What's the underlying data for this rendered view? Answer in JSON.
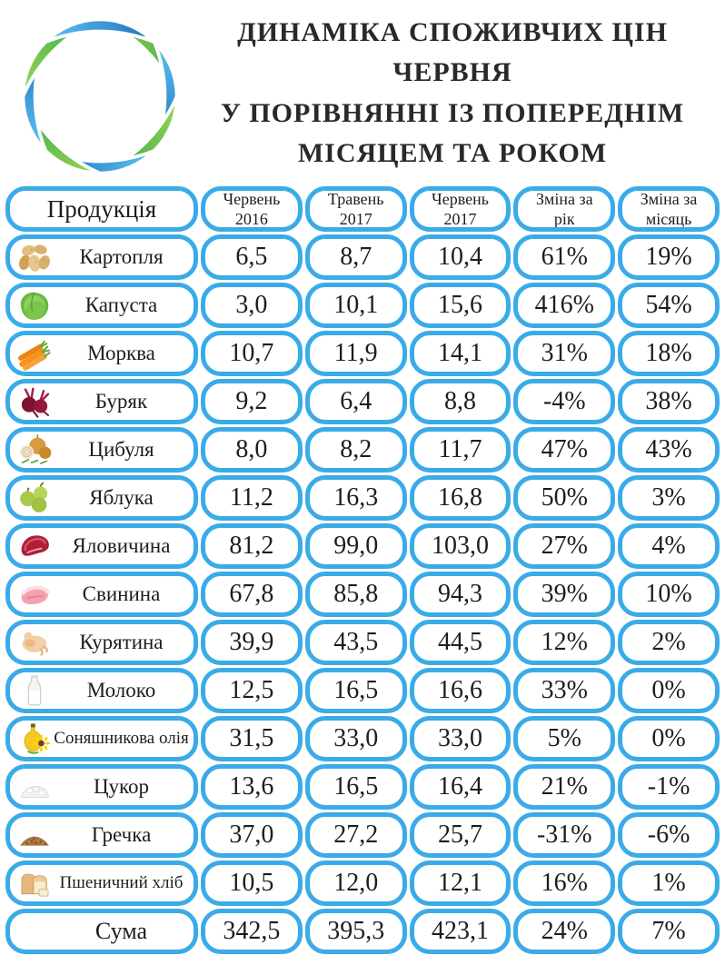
{
  "colors": {
    "cell_border_blue": "#3aabe8",
    "title_text": "#292929",
    "body_text": "#1d1d1d",
    "logo_green_light": "#9ed554",
    "logo_green_dark": "#2faa4a",
    "logo_blue_light": "#5fc4f1",
    "logo_blue_dark": "#1d71b8"
  },
  "header": {
    "logo_icon": "swirl-logo",
    "title_lines": [
      "ДИНАМІКА СПОЖИВЧИХ ЦІН ЧЕРВНЯ",
      "У ПОРІВНЯННІ ІЗ ПОПЕРЕДНІМ",
      "МІСЯЦЕМ ТА РОКОМ"
    ]
  },
  "table": {
    "columns": [
      {
        "line1": "Продукція",
        "line2": ""
      },
      {
        "line1": "Червень",
        "line2": "2016"
      },
      {
        "line1": "Травень",
        "line2": "2017"
      },
      {
        "line1": "Червень",
        "line2": "2017"
      },
      {
        "line1": "Зміна за",
        "line2": "рік"
      },
      {
        "line1": "Зміна за",
        "line2": "місяць"
      }
    ],
    "rows": [
      {
        "icon": "potato",
        "product": "Картопля",
        "values": [
          "6,5",
          "8,7",
          "10,4",
          "61%",
          "19%"
        ]
      },
      {
        "icon": "cabbage",
        "product": "Капуста",
        "values": [
          "3,0",
          "10,1",
          "15,6",
          "416%",
          "54%"
        ]
      },
      {
        "icon": "carrot",
        "product": "Морква",
        "values": [
          "10,7",
          "11,9",
          "14,1",
          "31%",
          "18%"
        ]
      },
      {
        "icon": "beet",
        "product": "Буряк",
        "values": [
          "9,2",
          "6,4",
          "8,8",
          "-4%",
          "38%"
        ]
      },
      {
        "icon": "onion",
        "product": "Цибуля",
        "values": [
          "8,0",
          "8,2",
          "11,7",
          "47%",
          "43%"
        ]
      },
      {
        "icon": "apple",
        "product": "Яблука",
        "values": [
          "11,2",
          "16,3",
          "16,8",
          "50%",
          "3%"
        ]
      },
      {
        "icon": "beef",
        "product": "Яловичина",
        "values": [
          "81,2",
          "99,0",
          "103,0",
          "27%",
          "4%"
        ]
      },
      {
        "icon": "pork",
        "product": "Свинина",
        "values": [
          "67,8",
          "85,8",
          "94,3",
          "39%",
          "10%"
        ]
      },
      {
        "icon": "chicken",
        "product": "Курятина",
        "values": [
          "39,9",
          "43,5",
          "44,5",
          "12%",
          "2%"
        ]
      },
      {
        "icon": "milk",
        "product": "Молоко",
        "values": [
          "12,5",
          "16,5",
          "16,6",
          "33%",
          "0%"
        ]
      },
      {
        "icon": "sunflower-oil",
        "product": "Соняшникова олія",
        "values": [
          "31,5",
          "33,0",
          "33,0",
          "5%",
          "0%"
        ]
      },
      {
        "icon": "sugar",
        "product": "Цукор",
        "values": [
          "13,6",
          "16,5",
          "16,4",
          "21%",
          "-1%"
        ]
      },
      {
        "icon": "buckwheat",
        "product": "Гречка",
        "values": [
          "37,0",
          "27,2",
          "25,7",
          "-31%",
          "-6%"
        ]
      },
      {
        "icon": "bread",
        "product": "Пшеничний хліб",
        "values": [
          "10,5",
          "12,0",
          "12,1",
          "16%",
          "1%"
        ]
      }
    ],
    "total_row": {
      "label": "Сума",
      "values": [
        "342,5",
        "395,3",
        "423,1",
        "24%",
        "7%"
      ]
    }
  },
  "chart_data": {
    "type": "table",
    "title": "ДИНАМІКА СПОЖИВЧИХ ЦІН ЧЕРВНЯ У ПОРІВНЯННІ ІЗ ПОПЕРЕДНІМ МІСЯЦЕМ ТА РОКОМ",
    "columns": [
      "Продукція",
      "Червень 2016",
      "Травень 2017",
      "Червень 2017",
      "Зміна за рік",
      "Зміна за місяць"
    ],
    "rows": [
      [
        "Картопля",
        6.5,
        8.7,
        10.4,
        "61%",
        "19%"
      ],
      [
        "Капуста",
        3.0,
        10.1,
        15.6,
        "416%",
        "54%"
      ],
      [
        "Морква",
        10.7,
        11.9,
        14.1,
        "31%",
        "18%"
      ],
      [
        "Буряк",
        9.2,
        6.4,
        8.8,
        "-4%",
        "38%"
      ],
      [
        "Цибуля",
        8.0,
        8.2,
        11.7,
        "47%",
        "43%"
      ],
      [
        "Яблука",
        11.2,
        16.3,
        16.8,
        "50%",
        "3%"
      ],
      [
        "Яловичина",
        81.2,
        99.0,
        103.0,
        "27%",
        "4%"
      ],
      [
        "Свинина",
        67.8,
        85.8,
        94.3,
        "39%",
        "10%"
      ],
      [
        "Курятина",
        39.9,
        43.5,
        44.5,
        "12%",
        "2%"
      ],
      [
        "Молоко",
        12.5,
        16.5,
        16.6,
        "33%",
        "0%"
      ],
      [
        "Соняшникова олія",
        31.5,
        33.0,
        33.0,
        "5%",
        "0%"
      ],
      [
        "Цукор",
        13.6,
        16.5,
        16.4,
        "21%",
        "-1%"
      ],
      [
        "Гречка",
        37.0,
        27.2,
        25.7,
        "-31%",
        "-6%"
      ],
      [
        "Пшеничний хліб",
        10.5,
        12.0,
        12.1,
        "16%",
        "1%"
      ],
      [
        "Сума",
        342.5,
        395.3,
        423.1,
        "24%",
        "7%"
      ]
    ],
    "layout_hints": {
      "grid": "rounded-cell grid",
      "legend": "none",
      "decimal_separator": ","
    }
  }
}
